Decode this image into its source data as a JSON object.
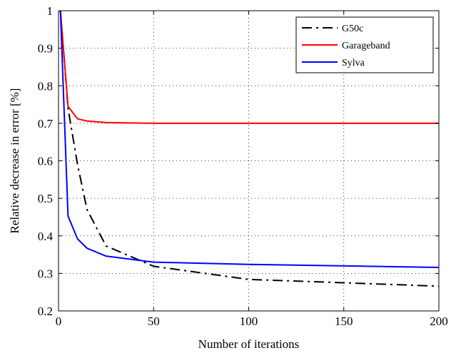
{
  "chart_data": {
    "type": "line",
    "title": "",
    "xlabel": "Number of iterations",
    "ylabel": "Relative decrease in error [%]",
    "xlim": [
      0,
      200
    ],
    "ylim": [
      0.2,
      1.0
    ],
    "xticks": [
      0,
      50,
      100,
      150,
      200
    ],
    "yticks": [
      0.2,
      0.3,
      0.4,
      0.5,
      0.6,
      0.7,
      0.8,
      0.9,
      1.0
    ],
    "xtick_labels": [
      "0",
      "50",
      "100",
      "150",
      "200"
    ],
    "ytick_labels": [
      "0.2",
      "0.3",
      "0.4",
      "0.5",
      "0.6",
      "0.7",
      "0.8",
      "0.9",
      "1"
    ],
    "grid": true,
    "legend_position": "top-right",
    "series": [
      {
        "name": "G50c",
        "color": "#000000",
        "dash": "dash-dot",
        "x": [
          1,
          5,
          10,
          15,
          25,
          50,
          100,
          200
        ],
        "y": [
          1.0,
          0.74,
          0.59,
          0.47,
          0.373,
          0.319,
          0.284,
          0.266
        ]
      },
      {
        "name": "Garageband",
        "color": "#ff0000",
        "dash": "solid",
        "x": [
          1,
          5,
          10,
          15,
          25,
          50,
          100,
          200
        ],
        "y": [
          1.0,
          0.745,
          0.712,
          0.706,
          0.702,
          0.7,
          0.7,
          0.7
        ]
      },
      {
        "name": "Sylva",
        "color": "#0000ff",
        "dash": "solid",
        "x": [
          1,
          5,
          10,
          15,
          25,
          50,
          100,
          200
        ],
        "y": [
          1.0,
          0.453,
          0.392,
          0.367,
          0.346,
          0.33,
          0.324,
          0.316
        ]
      }
    ]
  }
}
